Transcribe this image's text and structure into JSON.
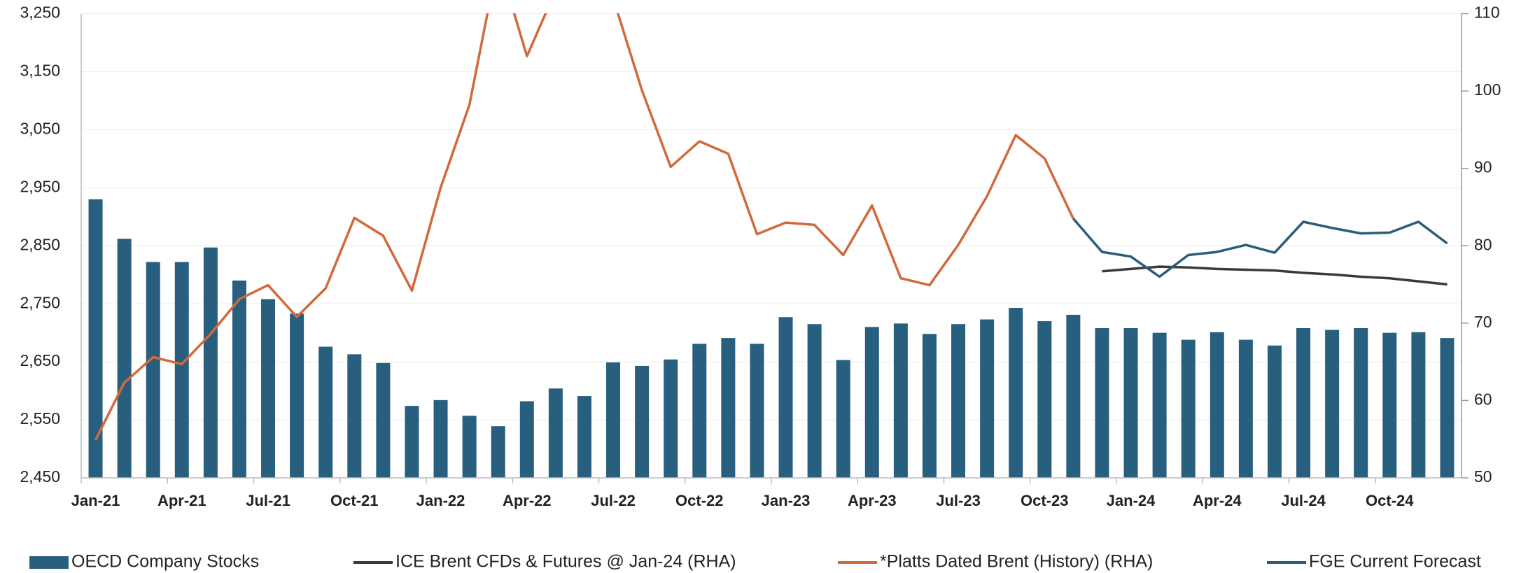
{
  "chart_data": {
    "type": "bar",
    "categories": [
      "Jan-21",
      null,
      null,
      "Apr-21",
      null,
      null,
      "Jul-21",
      null,
      null,
      "Oct-21",
      null,
      null,
      "Jan-22",
      null,
      null,
      "Apr-22",
      null,
      null,
      "Jul-22",
      null,
      null,
      "Oct-22",
      null,
      null,
      "Jan-23",
      null,
      null,
      "Apr-23",
      null,
      null,
      "Jul-23",
      null,
      null,
      "Oct-23",
      null,
      null,
      "Jan-24",
      null,
      null,
      "Apr-24",
      null,
      null,
      "Jul-24",
      null,
      null,
      "Oct-24",
      null,
      null
    ],
    "series": [
      {
        "name": "OECD Company Stocks",
        "type": "bar",
        "color": "#285f7f",
        "values": [
          2930,
          2862,
          2822,
          2822,
          2847,
          2790,
          2758,
          2733,
          2676,
          2663,
          2648,
          2574,
          2584,
          2557,
          2539,
          2582,
          2604,
          2591,
          2649,
          2643,
          2654,
          2681,
          2691,
          2681,
          2727,
          2715,
          2653,
          2710,
          2716,
          2698,
          2715,
          2723,
          2743,
          2720,
          2731,
          2708,
          2708,
          2700,
          2688,
          2701,
          2688,
          2678,
          2708,
          2705,
          2708,
          2700,
          2701,
          2691
        ]
      },
      {
        "name": "ICE Brent CFDs & Futures @ Jan-24 (RHA)",
        "type": "line",
        "axis": "y2",
        "color": "#3a3a3a",
        "values": [
          null,
          null,
          null,
          null,
          null,
          null,
          null,
          null,
          null,
          null,
          null,
          null,
          null,
          null,
          null,
          null,
          null,
          null,
          null,
          null,
          null,
          null,
          null,
          null,
          null,
          null,
          null,
          null,
          null,
          null,
          null,
          null,
          null,
          null,
          null,
          76.7,
          77.0,
          77.3,
          77.2,
          77.0,
          76.9,
          76.8,
          76.5,
          76.3,
          76.0,
          75.8,
          75.4,
          75.0
        ]
      },
      {
        "name": "*Platts Dated Brent (History) (RHA)",
        "type": "line",
        "axis": "y2",
        "color": "#d2693a",
        "values": [
          54.9,
          62.3,
          65.6,
          64.7,
          68.6,
          73.1,
          74.9,
          70.8,
          74.5,
          83.6,
          81.3,
          74.2,
          87.5,
          98.2,
          117,
          104.5,
          113,
          123,
          112,
          100.1,
          90.2,
          93.5,
          91.9,
          81.5,
          83.0,
          82.7,
          78.8,
          85.2,
          75.8,
          74.9,
          80.1,
          86.4,
          94.3,
          91.3,
          83.5,
          null,
          null,
          null,
          null,
          null,
          null,
          null,
          null,
          null,
          null,
          null,
          null,
          null
        ]
      },
      {
        "name": "FGE Current Forecast",
        "type": "line",
        "axis": "y2",
        "color": "#2b5d7a",
        "values": [
          null,
          null,
          null,
          null,
          null,
          null,
          null,
          null,
          null,
          null,
          null,
          null,
          null,
          null,
          null,
          null,
          null,
          null,
          null,
          null,
          null,
          null,
          null,
          null,
          null,
          null,
          null,
          null,
          null,
          null,
          null,
          null,
          null,
          null,
          83.5,
          79.2,
          78.6,
          76.0,
          78.8,
          79.2,
          80.1,
          79.1,
          83.1,
          82.3,
          81.6,
          81.7,
          83.1,
          80.3
        ]
      }
    ],
    "ylim": [
      2450,
      3250
    ],
    "yticks": [
      {
        "value": 2450,
        "label": "2,450"
      },
      {
        "value": 2550,
        "label": "2,550"
      },
      {
        "value": 2650,
        "label": "2,650"
      },
      {
        "value": 2750,
        "label": "2,750"
      },
      {
        "value": 2850,
        "label": "2,850"
      },
      {
        "value": 2950,
        "label": "2,950"
      },
      {
        "value": 3050,
        "label": "3,050"
      },
      {
        "value": 3150,
        "label": "3,150"
      },
      {
        "value": 3250,
        "label": "3,250"
      }
    ],
    "y2lim": [
      50,
      110
    ],
    "y2ticks": [
      50,
      60,
      70,
      80,
      90,
      100,
      110
    ],
    "grid": true,
    "legend": "bottom"
  }
}
